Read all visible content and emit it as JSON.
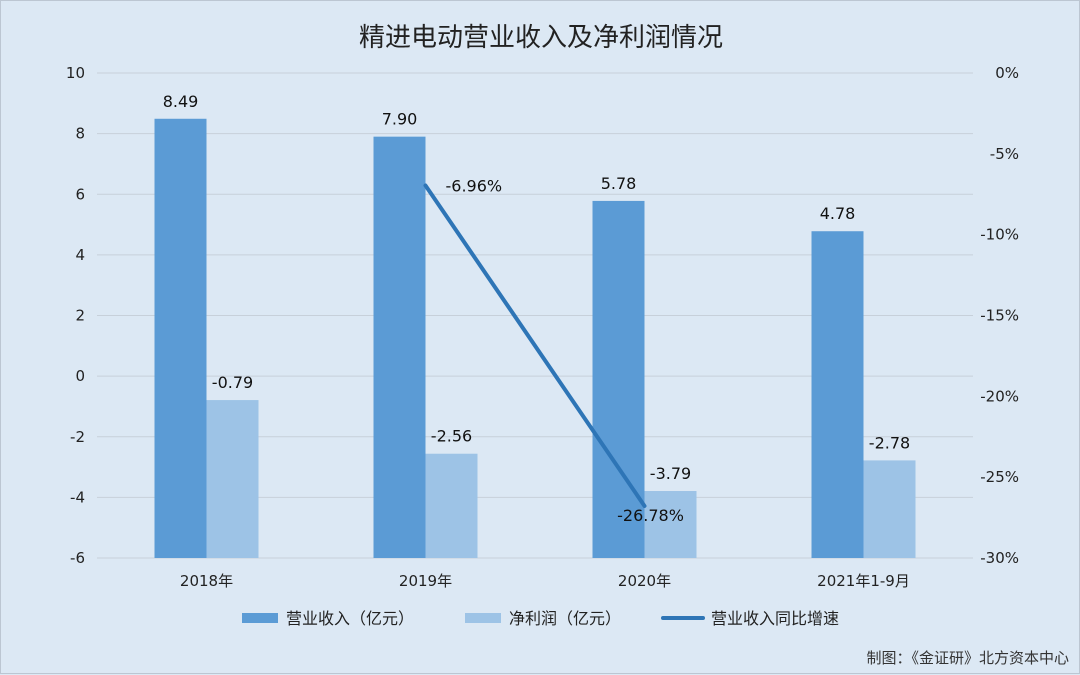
{
  "chart_data": {
    "type": "bar",
    "title": "精进电动营业收入及净利润情况",
    "categories": [
      "2018年",
      "2019年",
      "2020年",
      "2021年1-9月"
    ],
    "series": [
      {
        "name": "营业收入（亿元）",
        "kind": "bar",
        "axis": "left",
        "color": "#5b9bd5",
        "values": [
          8.49,
          7.9,
          5.78,
          4.78
        ],
        "labels": [
          "8.49",
          "7.90",
          "5.78",
          "4.78"
        ]
      },
      {
        "name": "净利润（亿元）",
        "kind": "bar",
        "axis": "left",
        "color": "#9dc3e6",
        "values": [
          -0.79,
          -2.56,
          -3.79,
          -2.78
        ],
        "labels": [
          "-0.79",
          "-2.56",
          "-3.79",
          "-2.78"
        ]
      },
      {
        "name": "营业收入同比增速",
        "kind": "line",
        "axis": "right",
        "color": "#2e75b6",
        "values": [
          null,
          -6.96,
          -26.78,
          null
        ],
        "labels": [
          null,
          "-6.96%",
          "-26.78%",
          null
        ]
      }
    ],
    "left_axis": {
      "min": -6,
      "max": 10,
      "step": 2,
      "ticks": [
        "-6",
        "-4",
        "-2",
        "0",
        "2",
        "4",
        "6",
        "8",
        "10"
      ]
    },
    "right_axis": {
      "min": -30,
      "max": 0,
      "step": 5,
      "ticks": [
        "-30%",
        "-25%",
        "-20%",
        "-15%",
        "-10%",
        "-5%",
        "0%"
      ]
    },
    "grid": true,
    "legend_position": "bottom"
  },
  "credit": "制图：《金证研》北方资本中心"
}
